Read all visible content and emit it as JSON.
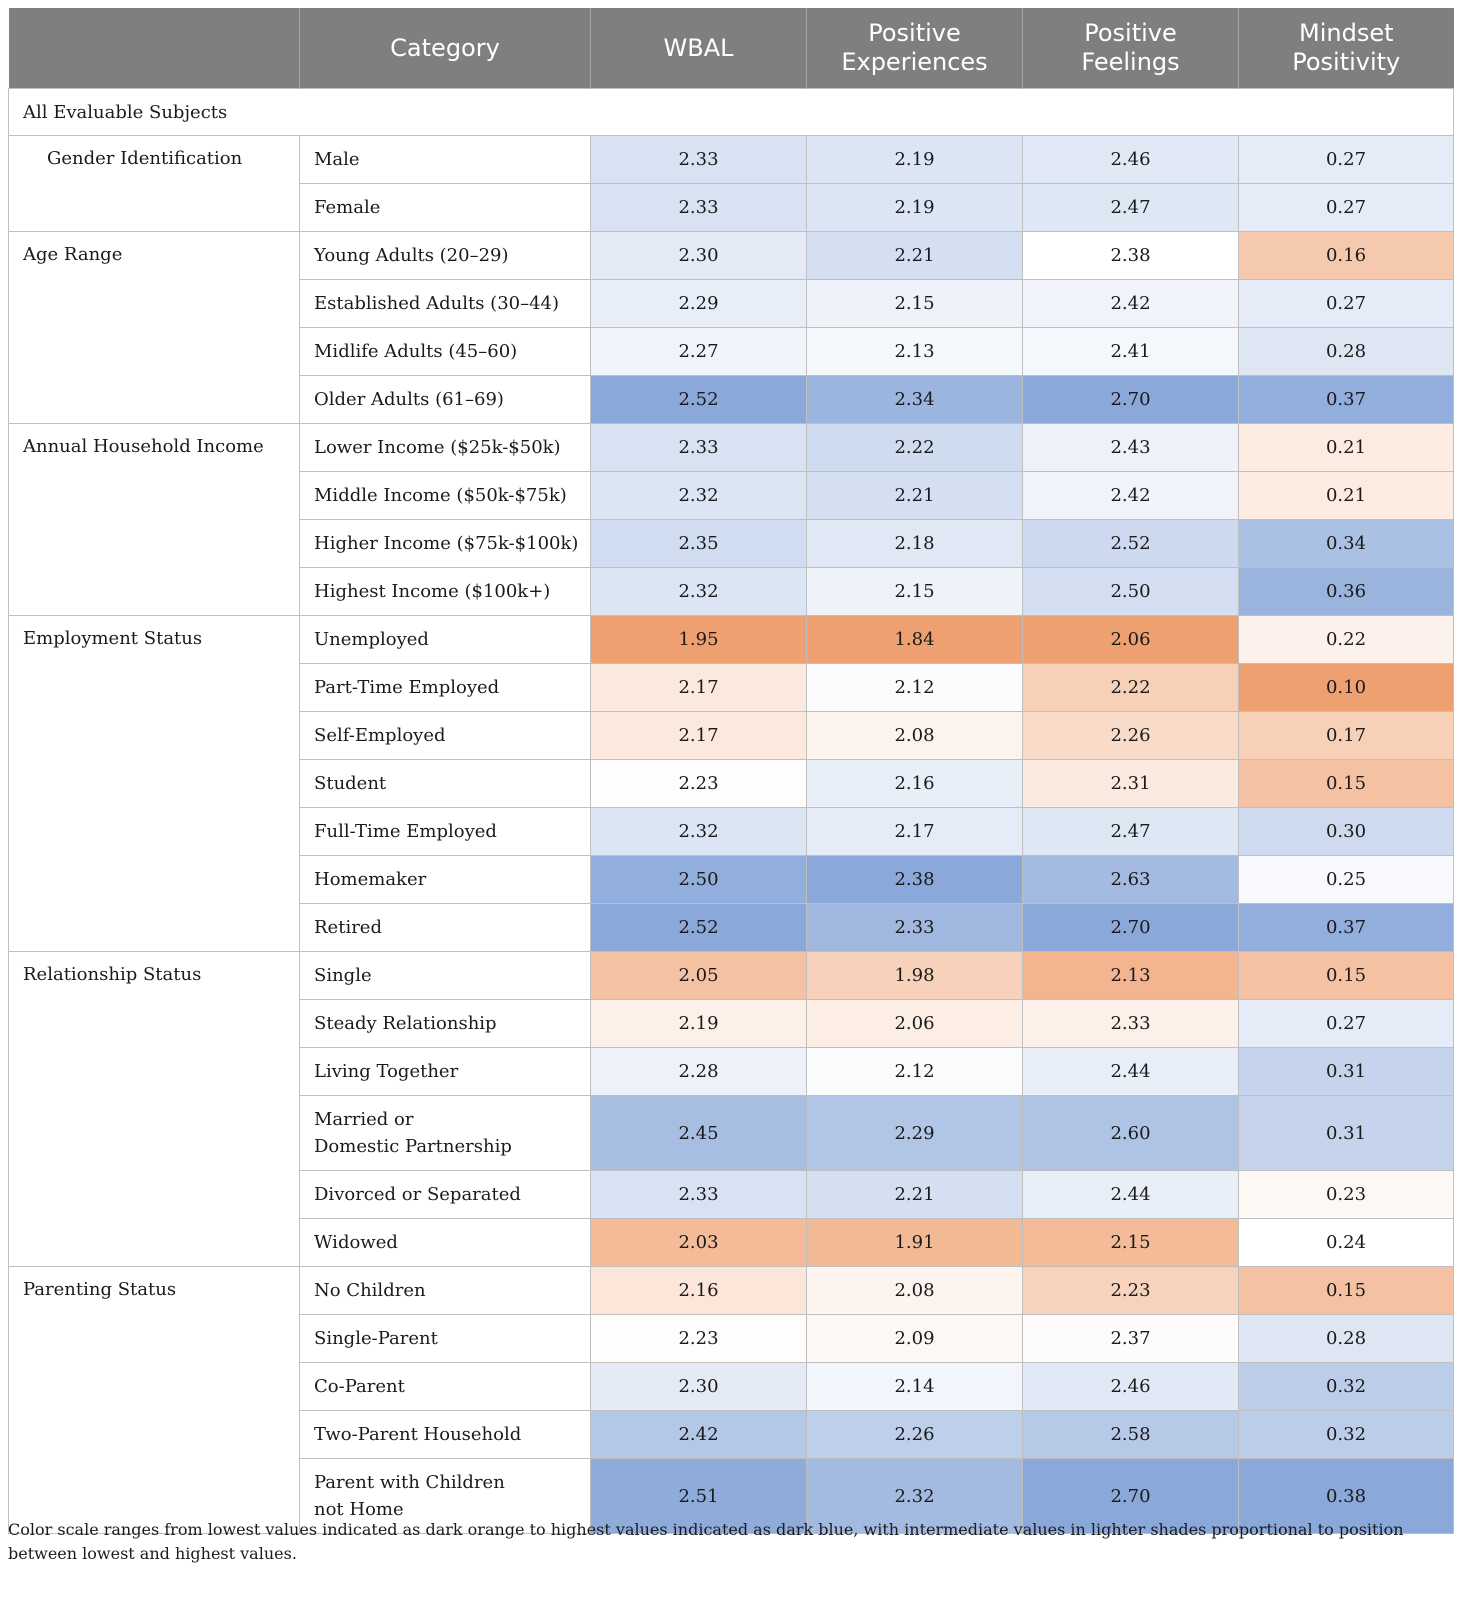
{
  "colors": {
    "header_bg": "#7f7f7f",
    "low_color": "#eea070",
    "mid_color": "#ffffff",
    "high_color": "#8aa8d9"
  },
  "header": {
    "blank": "",
    "category": "Category",
    "wbal": "WBAL",
    "positive_experiences": "Positive\nExperiences",
    "positive_feelings": "Positive\nFeelings",
    "mindset_positivity": "Mindset\nPositivity"
  },
  "all_subjects_label": "All Evaluable Subjects",
  "ranges": {
    "wbal": [
      1.95,
      2.52
    ],
    "positive_experiences": [
      1.84,
      2.38
    ],
    "positive_feelings": [
      2.06,
      2.7
    ],
    "mindset_positivity": [
      0.1,
      0.38
    ]
  },
  "groups": [
    {
      "label": "Gender Identification",
      "indent": true,
      "rows": [
        {
          "category": "Male",
          "wbal": "2.33",
          "pe": "2.19",
          "pf": "2.46",
          "mp": "0.27"
        },
        {
          "category": "Female",
          "wbal": "2.33",
          "pe": "2.19",
          "pf": "2.47",
          "mp": "0.27"
        }
      ]
    },
    {
      "label": "Age Range",
      "indent": false,
      "rows": [
        {
          "category": "Young Adults (20–29)",
          "wbal": "2.30",
          "pe": "2.21",
          "pf": "2.38",
          "mp": "0.16"
        },
        {
          "category": "Established Adults (30–44)",
          "wbal": "2.29",
          "pe": "2.15",
          "pf": "2.42",
          "mp": "0.27"
        },
        {
          "category": "Midlife Adults (45–60)",
          "wbal": "2.27",
          "pe": "2.13",
          "pf": "2.41",
          "mp": "0.28"
        },
        {
          "category": "Older Adults (61–69)",
          "wbal": "2.52",
          "pe": "2.34",
          "pf": "2.70",
          "mp": "0.37"
        }
      ]
    },
    {
      "label": "Annual Household Income",
      "indent": false,
      "rows": [
        {
          "category": "Lower Income ($25k-$50k)",
          "wbal": "2.33",
          "pe": "2.22",
          "pf": "2.43",
          "mp": "0.21"
        },
        {
          "category": "Middle Income ($50k-$75k)",
          "wbal": "2.32",
          "pe": "2.21",
          "pf": "2.42",
          "mp": "0.21"
        },
        {
          "category": "Higher Income ($75k-$100k)",
          "wbal": "2.35",
          "pe": "2.18",
          "pf": "2.52",
          "mp": "0.34"
        },
        {
          "category": "Highest Income ($100k+)",
          "wbal": "2.32",
          "pe": "2.15",
          "pf": "2.50",
          "mp": "0.36"
        }
      ]
    },
    {
      "label": "Employment Status",
      "indent": false,
      "rows": [
        {
          "category": "Unemployed",
          "wbal": "1.95",
          "pe": "1.84",
          "pf": "2.06",
          "mp": "0.22"
        },
        {
          "category": "Part-Time Employed",
          "wbal": "2.17",
          "pe": "2.12",
          "pf": "2.22",
          "mp": "0.10"
        },
        {
          "category": "Self-Employed",
          "wbal": "2.17",
          "pe": "2.08",
          "pf": "2.26",
          "mp": "0.17"
        },
        {
          "category": "Student",
          "wbal": "2.23",
          "pe": "2.16",
          "pf": "2.31",
          "mp": "0.15"
        },
        {
          "category": "Full-Time Employed",
          "wbal": "2.32",
          "pe": "2.17",
          "pf": "2.47",
          "mp": "0.30"
        },
        {
          "category": "Homemaker",
          "wbal": "2.50",
          "pe": "2.38",
          "pf": "2.63",
          "mp": "0.25"
        },
        {
          "category": "Retired",
          "wbal": "2.52",
          "pe": "2.33",
          "pf": "2.70",
          "mp": "0.37"
        }
      ]
    },
    {
      "label": "Relationship Status",
      "indent": false,
      "rows": [
        {
          "category": "Single",
          "wbal": "2.05",
          "pe": "1.98",
          "pf": "2.13",
          "mp": "0.15"
        },
        {
          "category": "Steady Relationship",
          "wbal": "2.19",
          "pe": "2.06",
          "pf": "2.33",
          "mp": "0.27"
        },
        {
          "category": "Living Together",
          "wbal": "2.28",
          "pe": "2.12",
          "pf": "2.44",
          "mp": "0.31"
        },
        {
          "category": "Married or\nDomestic Partnership",
          "wbal": "2.45",
          "pe": "2.29",
          "pf": "2.60",
          "mp": "0.31",
          "tall": true
        },
        {
          "category": "Divorced or Separated",
          "wbal": "2.33",
          "pe": "2.21",
          "pf": "2.44",
          "mp": "0.23"
        },
        {
          "category": "Widowed",
          "wbal": "2.03",
          "pe": "1.91",
          "pf": "2.15",
          "mp": "0.24"
        }
      ]
    },
    {
      "label": "Parenting Status",
      "indent": false,
      "rows": [
        {
          "category": "No Children",
          "wbal": "2.16",
          "pe": "2.08",
          "pf": "2.23",
          "mp": "0.15"
        },
        {
          "category": "Single-Parent",
          "wbal": "2.23",
          "pe": "2.09",
          "pf": "2.37",
          "mp": "0.28"
        },
        {
          "category": "Co-Parent",
          "wbal": "2.30",
          "pe": "2.14",
          "pf": "2.46",
          "mp": "0.32"
        },
        {
          "category": "Two-Parent Household",
          "wbal": "2.42",
          "pe": "2.26",
          "pf": "2.58",
          "mp": "0.32"
        },
        {
          "category": "Parent with Children\nnot Home",
          "wbal": "2.51",
          "pe": "2.32",
          "pf": "2.70",
          "mp": "0.38",
          "tall": true
        }
      ]
    }
  ],
  "footnote": "Color scale ranges from lowest values indicated as dark orange to highest values indicated as dark blue, with intermediate values in lighter shades proportional to position between lowest and highest values."
}
